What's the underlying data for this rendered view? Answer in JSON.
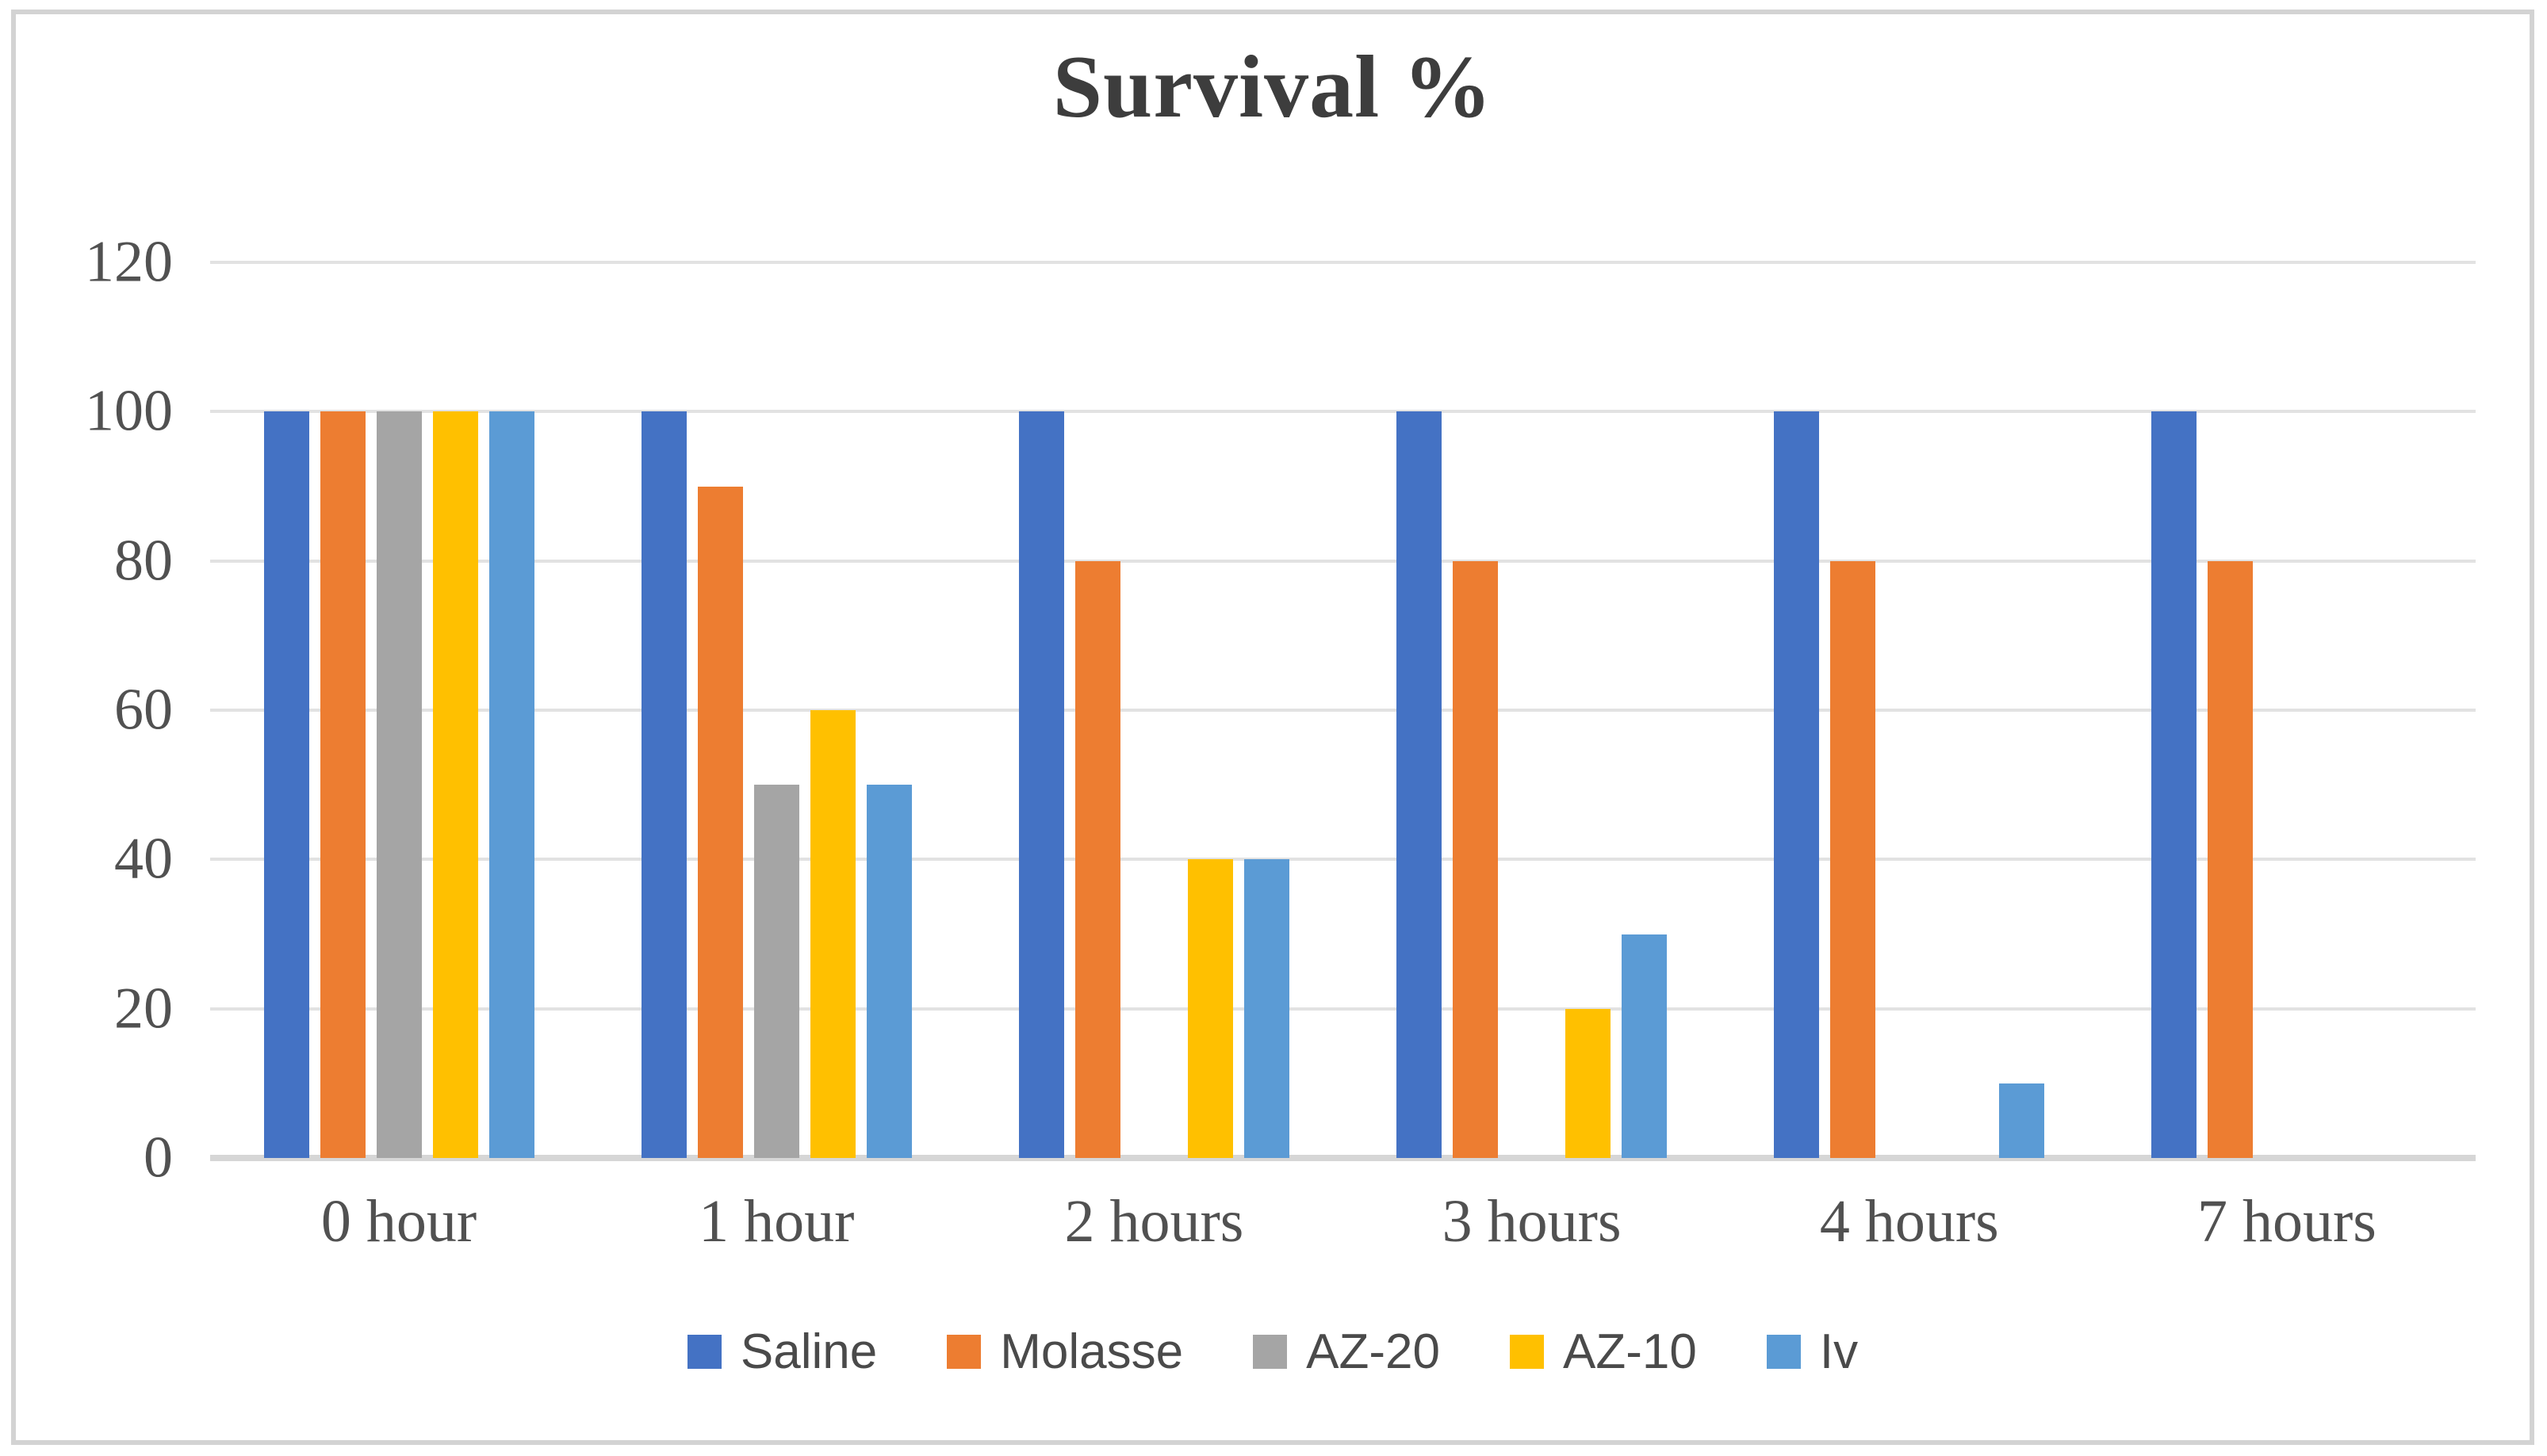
{
  "chart_data": {
    "type": "bar",
    "title": "Survival %",
    "categories": [
      "0 hour",
      "1 hour",
      "2 hours",
      "3 hours",
      "4 hours",
      "7 hours"
    ],
    "series": [
      {
        "name": "Saline",
        "color": "#4472C4",
        "values": [
          100,
          100,
          100,
          100,
          100,
          100
        ]
      },
      {
        "name": "Molasse",
        "color": "#ED7D31",
        "values": [
          100,
          90,
          80,
          80,
          80,
          80
        ]
      },
      {
        "name": "AZ-20",
        "color": "#A5A5A5",
        "values": [
          100,
          50,
          0,
          0,
          0,
          0
        ]
      },
      {
        "name": "AZ-10",
        "color": "#FFC000",
        "values": [
          100,
          60,
          40,
          20,
          0,
          0
        ]
      },
      {
        "name": "Iv",
        "color": "#5B9BD5",
        "values": [
          100,
          50,
          40,
          30,
          10,
          0
        ]
      }
    ],
    "xlabel": "",
    "ylabel": "",
    "ylim": [
      0,
      120
    ],
    "yticks": [
      0,
      20,
      40,
      60,
      80,
      100,
      120
    ],
    "grid": true,
    "legend_position": "bottom"
  },
  "style": {
    "frame_border_color": "#d3d3d3",
    "gridline_color": "#e2e2e2",
    "axis_line_color": "#d6d6d6",
    "title_color": "#3d3d3d",
    "tick_label_color": "#515151",
    "legend_label_color": "#4a4a4a",
    "background": "#ffffff"
  }
}
